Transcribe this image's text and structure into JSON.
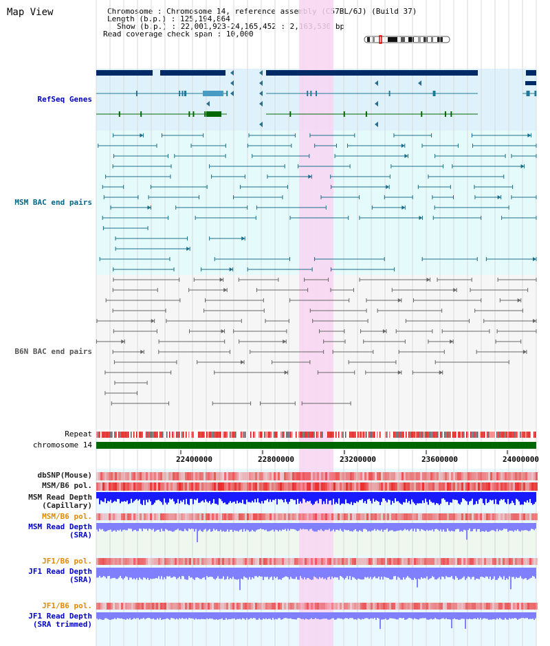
{
  "page": {
    "title": "Map View"
  },
  "info": {
    "chromosome_label": "Chromosome",
    "chromosome_value": "Chromosome 14, reference assembly (C57BL/6J) (Build 37)",
    "length_label": "Length (b.p.)",
    "length_value": "125,194,864",
    "show_label": "Show (b.p.)",
    "show_value": "22,001,923-24,165,452 : 2,163,530 bp",
    "coverage_label": "Read coverage check span",
    "coverage_value": "10,000"
  },
  "tracks": {
    "refseq": "RefSeq Genes",
    "msm_bac": "MSM BAC end pairs",
    "b6n_bac": "B6N BAC end pairs",
    "repeat": "Repeat",
    "chromosome": "chromosome 14",
    "dbsnp": "dbSNP(Mouse)",
    "msm_b6_pol_1": "MSM/B6 pol.",
    "msm_read_depth_cap_1": "MSM Read Depth",
    "msm_read_depth_cap_2": "(Capillary)",
    "msm_b6_pol_2": "MSM/B6 pol.",
    "msm_read_depth_sra_1": "MSM Read Depth",
    "msm_read_depth_sra_2": "(SRA)",
    "jf1_b6_pol_1": "JF1/B6 pol.",
    "jf1_read_depth_sra_1": "JF1 Read Depth",
    "jf1_read_depth_sra_2": "(SRA)",
    "jf1_b6_pol_2": "JF1/B6 pol.",
    "jf1_read_depth_trim_1": "JF1 Read Depth",
    "jf1_read_depth_trim_2": "(SRA trimmed)"
  },
  "axis": {
    "ticks": [
      "22400000",
      "22800000",
      "23200000",
      "23600000",
      "24000000"
    ]
  },
  "colors": {
    "highlight": "#f8d6f2",
    "gene_dark": "#002a66",
    "gene_teal": "#1f7a99",
    "gene_green": "#006600",
    "msm_line": "#1a6e8a",
    "b6n_line": "#666666",
    "chromosome": "#006600",
    "depth_blue": "#1a1aff",
    "depth_light": "#8080ff"
  }
}
